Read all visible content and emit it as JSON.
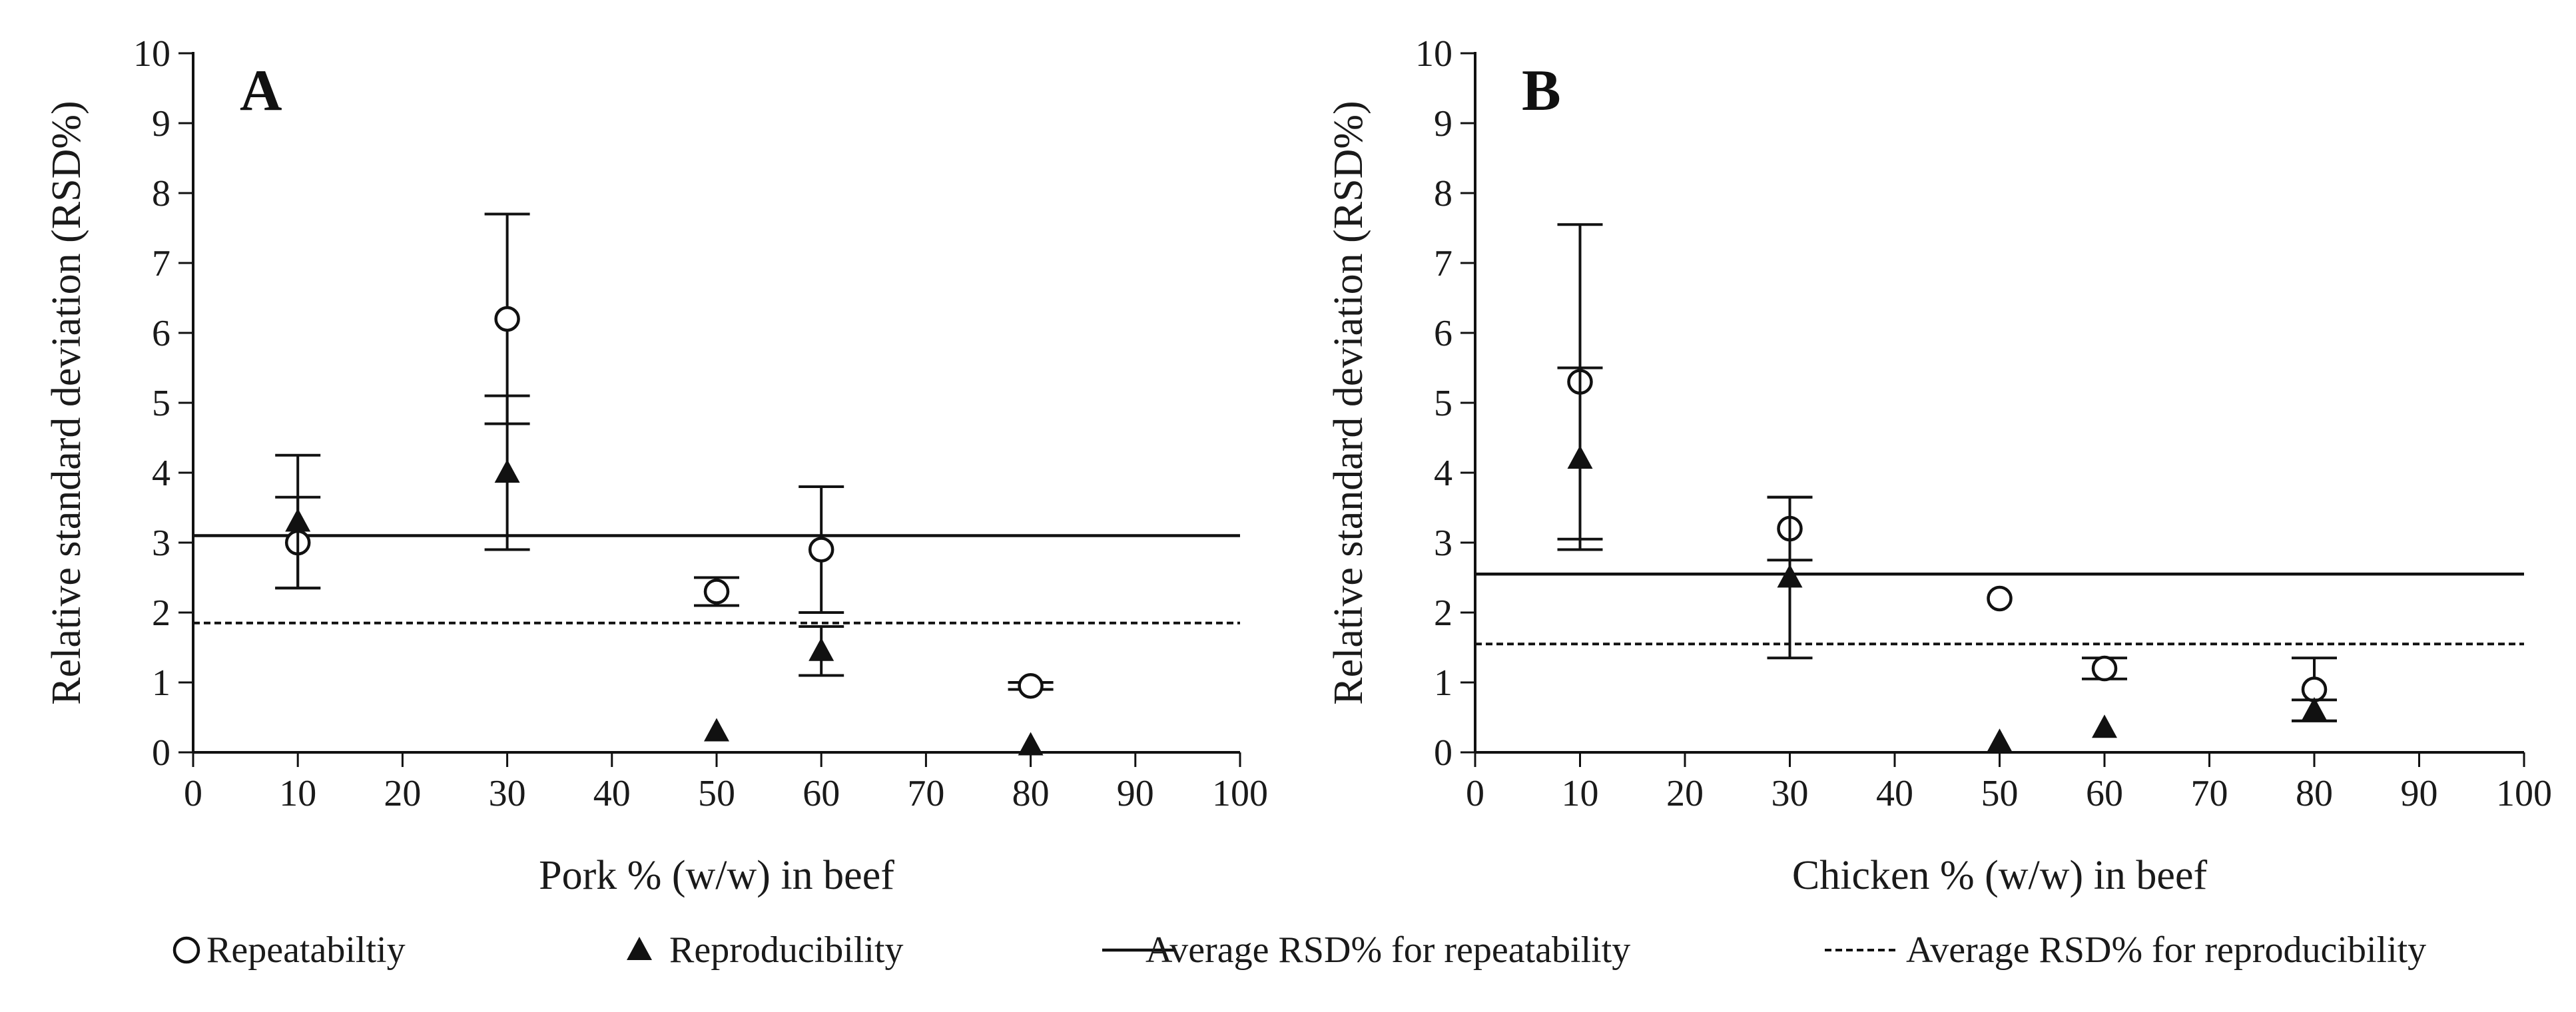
{
  "chart_data": [
    {
      "type": "scatter",
      "panel_label": "A",
      "xlabel": "Pork % (w/w) in beef",
      "ylabel": "Relative standard deviation (RSD%)",
      "xlim": [
        0,
        100
      ],
      "ylim": [
        0,
        10
      ],
      "xticks": [
        "0",
        "10",
        "20",
        "30",
        "40",
        "50",
        "60",
        "70",
        "80",
        "90",
        "100"
      ],
      "yticks": [
        "0",
        "1",
        "2",
        "3",
        "4",
        "5",
        "6",
        "7",
        "8",
        "9",
        "10"
      ],
      "series": [
        {
          "name": "Repeatabiltiy",
          "marker": "open-circle",
          "x": [
            10,
            30,
            50,
            60,
            80
          ],
          "y": [
            3.0,
            6.2,
            2.3,
            2.9,
            0.95
          ],
          "err": [
            0.65,
            1.5,
            0.2,
            0.9,
            0.05
          ]
        },
        {
          "name": "Reproducibility",
          "marker": "filled-triangle",
          "x": [
            10,
            30,
            50,
            60,
            80
          ],
          "y": [
            3.3,
            4.0,
            0.3,
            1.45,
            0.1
          ],
          "err": [
            0.95,
            1.1,
            0,
            0.35,
            0
          ]
        }
      ],
      "reference_lines": [
        {
          "name": "Average RSD% for repeatability",
          "y": 3.1,
          "style": "solid"
        },
        {
          "name": "Average RSD% for reproducibility",
          "y": 1.85,
          "style": "dashed"
        }
      ]
    },
    {
      "type": "scatter",
      "panel_label": "B",
      "xlabel": "Chicken % (w/w) in beef",
      "ylabel": "Relative standard deviation (RSD%)",
      "xlim": [
        0,
        100
      ],
      "ylim": [
        0,
        10
      ],
      "xticks": [
        "0",
        "10",
        "20",
        "30",
        "40",
        "50",
        "60",
        "70",
        "80",
        "90",
        "100"
      ],
      "yticks": [
        "0",
        "1",
        "2",
        "3",
        "4",
        "5",
        "6",
        "7",
        "8",
        "9",
        "10"
      ],
      "series": [
        {
          "name": "Repeatabiltiy",
          "marker": "open-circle",
          "x": [
            10,
            30,
            50,
            60,
            80
          ],
          "y": [
            5.3,
            3.2,
            2.2,
            1.2,
            0.9
          ],
          "err": [
            2.25,
            0.45,
            0,
            0.15,
            0.45
          ]
        },
        {
          "name": "Reproducibility",
          "marker": "filled-triangle",
          "x": [
            10,
            30,
            50,
            60,
            80
          ],
          "y": [
            4.2,
            2.5,
            0.15,
            0.35,
            0.6
          ],
          "err": [
            1.3,
            1.15,
            0,
            0,
            0.15
          ]
        }
      ],
      "reference_lines": [
        {
          "name": "Average RSD% for repeatability",
          "y": 2.55,
          "style": "solid"
        },
        {
          "name": "Average RSD% for reproducibility",
          "y": 1.55,
          "style": "dashed"
        }
      ]
    }
  ],
  "legend": {
    "placement": "bottom",
    "items": [
      {
        "label": "Repeatabiltiy",
        "symbol": "open-circle"
      },
      {
        "label": "Reproducibility",
        "symbol": "filled-triangle"
      },
      {
        "label": "Average RSD% for repeatability",
        "symbol": "solid-line"
      },
      {
        "label": "Average RSD% for reproducibility",
        "symbol": "dashed-line"
      }
    ]
  },
  "colors": {
    "ink": "#111111",
    "background": "#ffffff"
  }
}
